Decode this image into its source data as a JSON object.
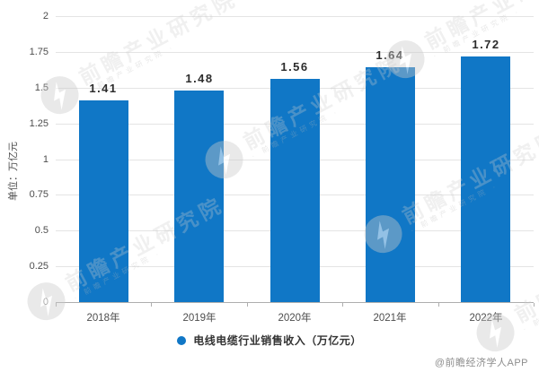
{
  "chart_data": {
    "type": "bar",
    "categories": [
      "2018年",
      "2019年",
      "2020年",
      "2021年",
      "2022年"
    ],
    "series": [
      {
        "name": "电线电缆行业销售收入（万亿元）",
        "values": [
          1.41,
          1.48,
          1.56,
          1.64,
          1.72
        ]
      }
    ],
    "title": "",
    "xlabel": "",
    "ylabel": "单位：万亿元",
    "ylim": [
      0,
      2
    ],
    "ytick_step": 0.25,
    "grid": true,
    "legend_position": "bottom",
    "bar_color": "#1077c6",
    "value_label_format": "2dp"
  },
  "legend": {
    "label": "电线电缆行业销售收入（万亿元）",
    "marker_color": "#1077c6"
  },
  "watermark": {
    "brand_text": "前瞻产业研究院",
    "sub_text": "前瞻产业研究院"
  },
  "attribution": "@前瞻经济学人APP"
}
